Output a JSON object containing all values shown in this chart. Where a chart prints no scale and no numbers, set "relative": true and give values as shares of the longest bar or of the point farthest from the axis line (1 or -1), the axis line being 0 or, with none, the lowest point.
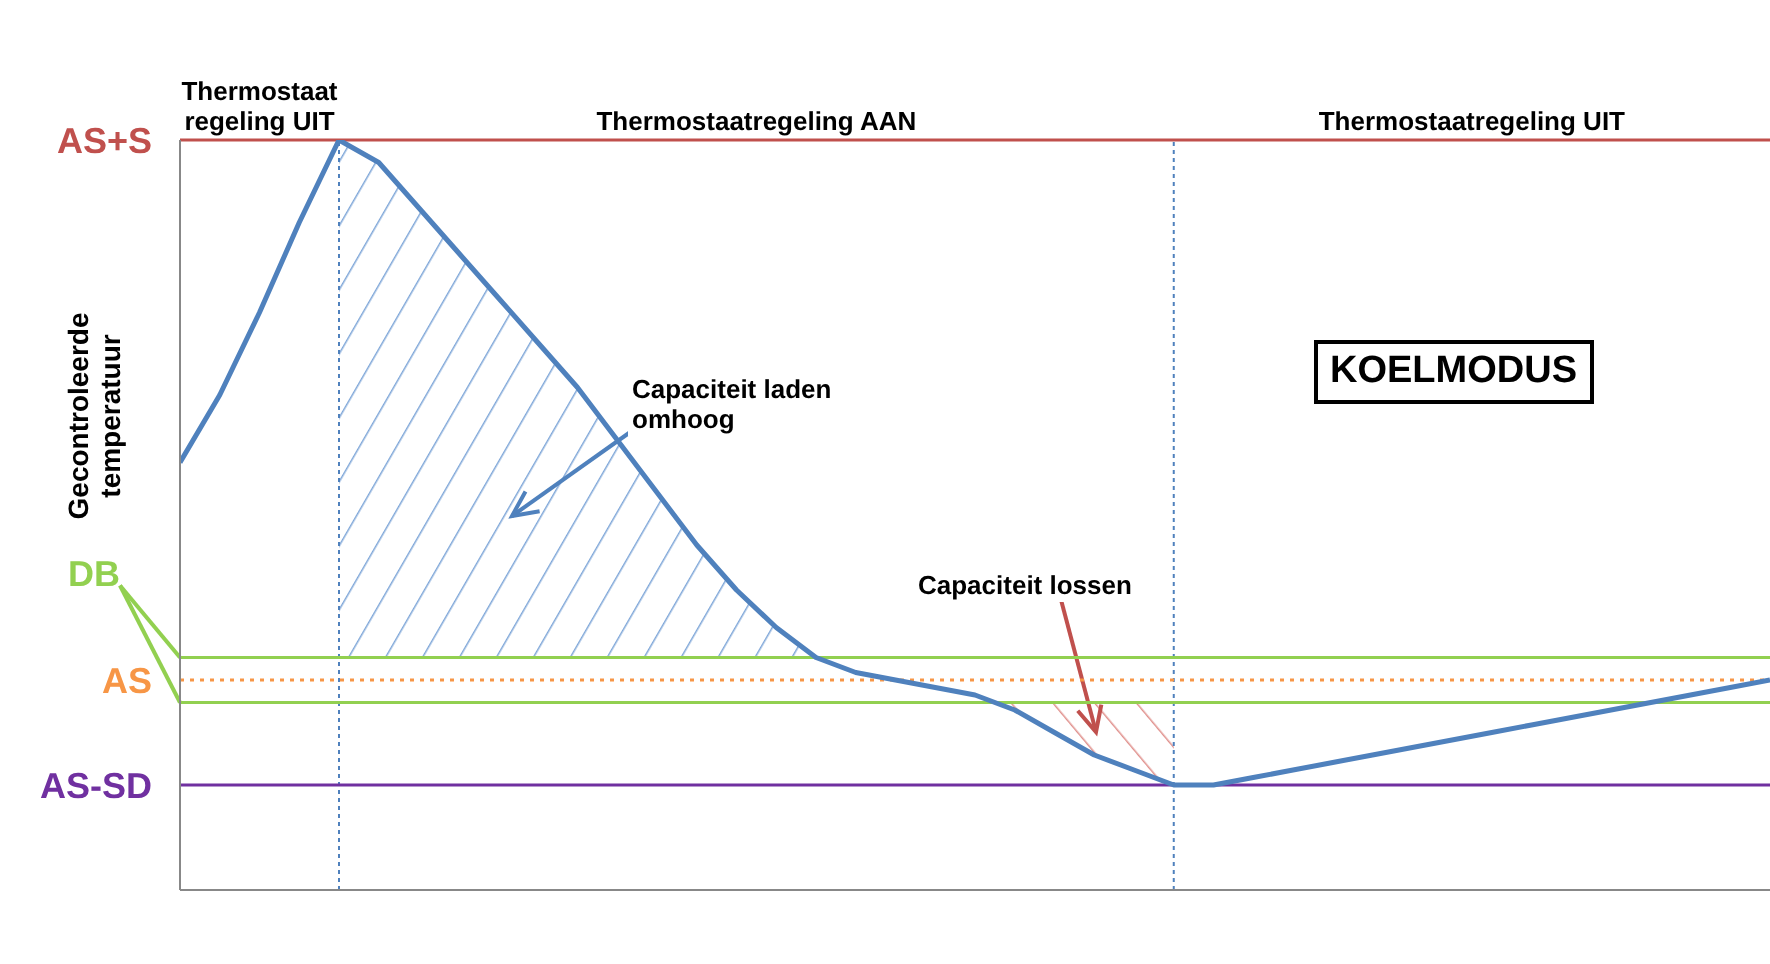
{
  "chart_data": {
    "type": "line",
    "relative": true,
    "ylabel": "Gecontroleerde temperatuur",
    "legend": false,
    "grid": false,
    "marker": "none",
    "categories": [
      null,
      null,
      null,
      null,
      null,
      null,
      null,
      null,
      null,
      null,
      null,
      null,
      null,
      null,
      null,
      null,
      null,
      null,
      null,
      null,
      null,
      null,
      null,
      null,
      null,
      null,
      null,
      null,
      null,
      null,
      null,
      null,
      null,
      null,
      null,
      null,
      null,
      null,
      null,
      null,
      null
    ],
    "series": [
      {
        "color": "#4f81bd",
        "values": [
          0.57,
          0.66,
          0.77,
          0.89,
          1,
          0.97,
          0.91,
          0.85,
          0.79,
          0.73,
          0.67,
          0.6,
          0.53,
          0.46,
          0.4,
          0.35,
          0.31,
          0.29,
          0.28,
          0.27,
          0.26,
          0.24,
          0.21,
          0.18,
          0.16,
          0.14,
          0.14,
          0.15,
          0.16,
          0.17,
          0.18,
          0.19,
          0.2,
          0.21,
          0.22,
          0.23,
          0.24,
          0.25,
          0.26,
          0.27,
          0.28
        ]
      }
    ],
    "ref_lines": [
      {
        "axis": "y",
        "value": 1,
        "label": "AS+S",
        "color": "#c0504d"
      },
      {
        "axis": "y",
        "value": 0.31,
        "label": "DB",
        "color": "#92d050"
      },
      {
        "axis": "y",
        "value": 0.25,
        "label": null,
        "color": "#92d050"
      },
      {
        "axis": "y",
        "value": 0.28,
        "label": "AS",
        "color": "#f79646",
        "line_style": "dotted"
      },
      {
        "axis": "y",
        "value": 0.14,
        "label": "AS-SD",
        "color": "#7030a0"
      }
    ],
    "annotations": [
      "Thermostaatregeling UIT",
      "Thermostaatregeling AAN",
      "Thermostaatregeling UIT",
      "KOELMODUS",
      "Capaciteit laden omhoog",
      "Capaciteit lossen"
    ]
  }
}
